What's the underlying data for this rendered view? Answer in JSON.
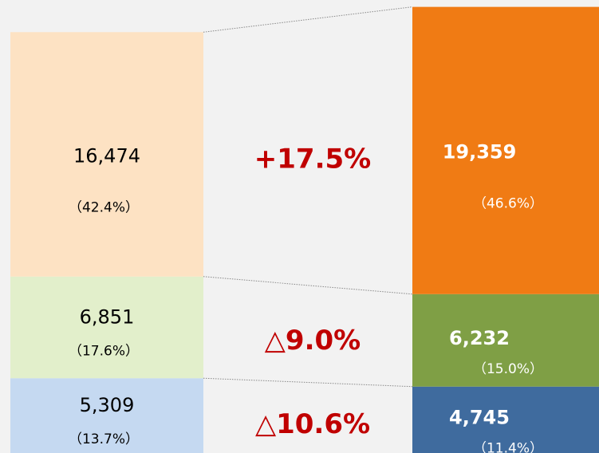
{
  "chart_data": {
    "type": "stacked_bar",
    "categories": [
      null,
      null
    ],
    "ylim": [
      0,
      30800
    ],
    "series": [
      {
        "colors": [
          "#c5d9f1",
          "#3f6b9e"
        ],
        "values": [
          5309,
          4745
        ],
        "value_labels": [
          "5,309",
          "4,745"
        ],
        "shares": [
          13.7,
          11.4
        ],
        "share_labels": [
          "（13.7%）",
          "（11.4%）"
        ],
        "change": "△10.6%"
      },
      {
        "colors": [
          "#e2efcb",
          "#7f9f45"
        ],
        "values": [
          6851,
          6232
        ],
        "value_labels": [
          "6,851",
          "6,232"
        ],
        "shares": [
          17.6,
          15.0
        ],
        "share_labels": [
          "（17.6%）",
          "（15.0%）"
        ],
        "change": "△9.0%"
      },
      {
        "colors": [
          "#fde2c3",
          "#f07b14"
        ],
        "values": [
          16474,
          19359
        ],
        "value_labels": [
          "16,474",
          "19,359"
        ],
        "shares": [
          42.4,
          46.6
        ],
        "share_labels": [
          "（42.4%）",
          "（46.6%）"
        ],
        "change": "+17.5%"
      }
    ]
  }
}
